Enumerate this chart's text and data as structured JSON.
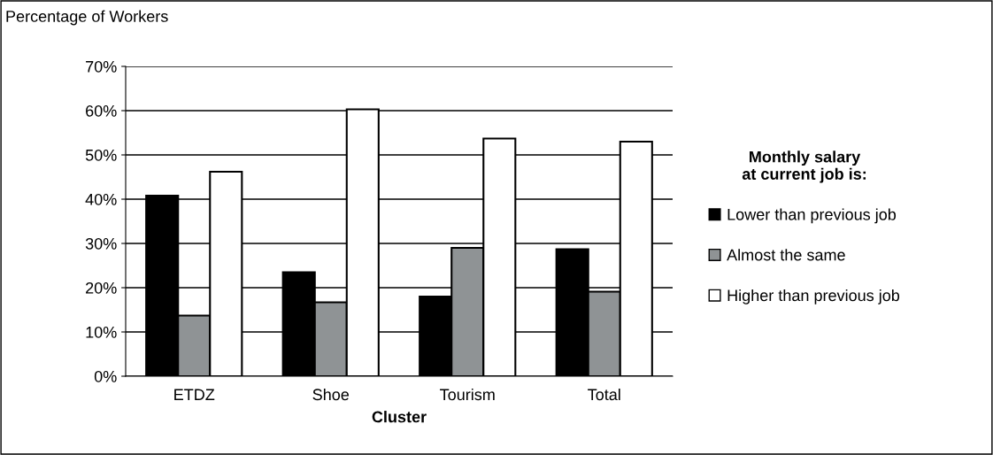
{
  "chart_data": {
    "type": "bar",
    "ylabel": "Percentage of Workers",
    "xlabel": "Cluster",
    "legend_title": "Monthly salary\nat current job is:",
    "legend": "right",
    "categories": [
      "ETDZ",
      "Shoe",
      "Tourism",
      "Total"
    ],
    "series": [
      {
        "name": "Lower than previous job",
        "color": "#000000",
        "values": [
          40.8,
          23.5,
          18,
          28.7
        ]
      },
      {
        "name": "Almost the same",
        "color": "#8f9395",
        "values": [
          13.7,
          16.7,
          29,
          19.1
        ]
      },
      {
        "name": "Higher than previous job",
        "color": "#ffffff",
        "values": [
          46.2,
          60.3,
          53.7,
          53
        ]
      }
    ],
    "ylim": [
      0,
      70
    ],
    "yticks": [
      {
        "value": 0,
        "label": "0%"
      },
      {
        "value": 10,
        "label": "10%"
      },
      {
        "value": 20,
        "label": "20%"
      },
      {
        "value": 30,
        "label": "30%"
      },
      {
        "value": 40,
        "label": "40%"
      },
      {
        "value": 50,
        "label": "50%"
      },
      {
        "value": 60,
        "label": "60%"
      },
      {
        "value": 70,
        "label": "70%"
      }
    ],
    "grid": "y"
  }
}
